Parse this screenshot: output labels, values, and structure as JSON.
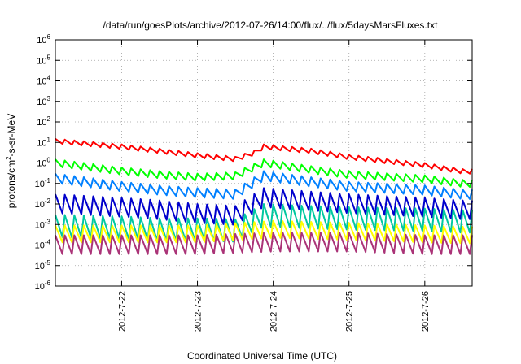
{
  "chart_data": {
    "type": "line",
    "title": "/data/run/goesPlots/archive/2012-07-26/14:00/flux/../flux/5daysMarsFluxes.txt",
    "xlabel": "Coordinated Universal Time (UTC)",
    "ylabel": {
      "base": "protons/cm",
      "sup": "2",
      "rest": "-s-sr-MeV"
    },
    "xlim": [
      "2012-07-21T03:00",
      "2012-07-26T15:00"
    ],
    "ylim_exp": [
      -6,
      6
    ],
    "yscale": "log",
    "grid": true,
    "x_ticks": [
      {
        "label": "2012-7-22",
        "date": "2012-07-22T00:00"
      },
      {
        "label": "2012-7-23",
        "date": "2012-07-23T00:00"
      },
      {
        "label": "2012-7-24",
        "date": "2012-07-24T00:00"
      },
      {
        "label": "2012-7-25",
        "date": "2012-07-25T00:00"
      },
      {
        "label": "2012-7-26",
        "date": "2012-07-26T00:00"
      }
    ],
    "y_ticks": [
      -6,
      -5,
      -4,
      -3,
      -2,
      -1,
      0,
      1,
      2,
      3,
      4,
      5,
      6
    ],
    "y_tick_base": "10",
    "sawtooth_period_hours": 3,
    "series": [
      {
        "color": "#ff0000",
        "points": [
          [
            "2012-07-21T03:00",
            15
          ],
          [
            "2012-07-22T00:00",
            8
          ],
          [
            "2012-07-22T12:00",
            5
          ],
          [
            "2012-07-23T00:00",
            3
          ],
          [
            "2012-07-23T12:00",
            2
          ],
          [
            "2012-07-23T18:00",
            4
          ],
          [
            "2012-07-23T21:00",
            8
          ],
          [
            "2012-07-24T12:00",
            5
          ],
          [
            "2012-07-25T00:00",
            2.5
          ],
          [
            "2012-07-26T00:00",
            1.0
          ],
          [
            "2012-07-26T12:00",
            0.5
          ]
        ],
        "dip": 0.6
      },
      {
        "color": "#00ff00",
        "points": [
          [
            "2012-07-21T03:00",
            1.5
          ],
          [
            "2012-07-22T00:00",
            0.6
          ],
          [
            "2012-07-22T12:00",
            0.4
          ],
          [
            "2012-07-23T00:00",
            0.3
          ],
          [
            "2012-07-23T12:00",
            0.35
          ],
          [
            "2012-07-23T21:00",
            1.5
          ],
          [
            "2012-07-24T12:00",
            0.7
          ],
          [
            "2012-07-25T00:00",
            0.4
          ],
          [
            "2012-07-26T00:00",
            0.25
          ],
          [
            "2012-07-26T12:00",
            0.15
          ]
        ],
        "dip": 0.45
      },
      {
        "color": "#0080ff",
        "points": [
          [
            "2012-07-21T03:00",
            0.3
          ],
          [
            "2012-07-22T00:00",
            0.12
          ],
          [
            "2012-07-22T12:00",
            0.08
          ],
          [
            "2012-07-23T00:00",
            0.06
          ],
          [
            "2012-07-23T12:00",
            0.05
          ],
          [
            "2012-07-23T21:00",
            0.4
          ],
          [
            "2012-07-24T12:00",
            0.2
          ],
          [
            "2012-07-25T00:00",
            0.12
          ],
          [
            "2012-07-26T00:00",
            0.08
          ],
          [
            "2012-07-26T12:00",
            0.05
          ]
        ],
        "dip": 0.35
      },
      {
        "color": "#0000cc",
        "points": [
          [
            "2012-07-21T03:00",
            0.03
          ],
          [
            "2012-07-22T00:00",
            0.02
          ],
          [
            "2012-07-22T12:00",
            0.015
          ],
          [
            "2012-07-23T00:00",
            0.01
          ],
          [
            "2012-07-23T12:00",
            0.008
          ],
          [
            "2012-07-23T21:00",
            0.06
          ],
          [
            "2012-07-24T12:00",
            0.04
          ],
          [
            "2012-07-25T00:00",
            0.03
          ],
          [
            "2012-07-26T00:00",
            0.02
          ],
          [
            "2012-07-26T12:00",
            0.015
          ]
        ],
        "dip": 0.12
      },
      {
        "color": "#00c8a0",
        "points": [
          [
            "2012-07-21T03:00",
            0.003
          ],
          [
            "2012-07-22T00:00",
            0.0025
          ],
          [
            "2012-07-22T12:00",
            0.002
          ],
          [
            "2012-07-23T00:00",
            0.002
          ],
          [
            "2012-07-23T12:00",
            0.0018
          ],
          [
            "2012-07-23T21:00",
            0.01
          ],
          [
            "2012-07-24T12:00",
            0.008
          ],
          [
            "2012-07-25T00:00",
            0.007
          ],
          [
            "2012-07-26T00:00",
            0.006
          ],
          [
            "2012-07-26T12:00",
            0.005
          ]
        ],
        "dip": 0.08
      },
      {
        "color": "#ffff00",
        "points": [
          [
            "2012-07-21T03:00",
            0.0009
          ],
          [
            "2012-07-22T00:00",
            0.0009
          ],
          [
            "2012-07-23T00:00",
            0.0009
          ],
          [
            "2012-07-24T00:00",
            0.0015
          ],
          [
            "2012-07-25T00:00",
            0.0012
          ],
          [
            "2012-07-26T00:00",
            0.0009
          ],
          [
            "2012-07-26T12:00",
            0.0008
          ]
        ],
        "dip": 0.15
      },
      {
        "color": "#aa3377",
        "points": [
          [
            "2012-07-21T03:00",
            0.0003
          ],
          [
            "2012-07-22T00:00",
            0.0003
          ],
          [
            "2012-07-23T00:00",
            0.0003
          ],
          [
            "2012-07-24T00:00",
            0.0004
          ],
          [
            "2012-07-25T00:00",
            0.0004
          ],
          [
            "2012-07-26T00:00",
            0.0003
          ],
          [
            "2012-07-26T12:00",
            0.0003
          ]
        ],
        "dip": 0.12
      }
    ]
  }
}
